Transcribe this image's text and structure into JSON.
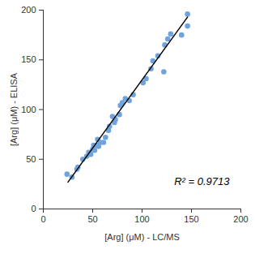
{
  "chart_data": {
    "type": "scatter",
    "x_label": "[Arg] (μM) - LC/MS",
    "y_label": "[Arg] (μM) - ELISA",
    "x": [
      24,
      29,
      34,
      35,
      40,
      44,
      46,
      48,
      50,
      51,
      52,
      54,
      55,
      56,
      58,
      61,
      63,
      66,
      67,
      70,
      72,
      73,
      77,
      78,
      80,
      83,
      87,
      91,
      101,
      104,
      109,
      111,
      116,
      122,
      123,
      126,
      129,
      140,
      146,
      146
    ],
    "values": [
      35,
      32,
      40,
      42,
      50,
      53,
      57,
      55,
      60,
      64,
      59,
      64,
      70,
      63,
      67,
      67,
      72,
      79,
      83,
      93,
      87,
      90,
      95,
      104,
      107,
      111,
      109,
      115,
      127,
      131,
      141,
      149,
      154,
      138,
      165,
      171,
      176,
      175,
      184,
      196
    ],
    "color": "#6fa3dc",
    "fit_line": {
      "x": [
        25,
        146
      ],
      "y": [
        27,
        193
      ],
      "color": "#000000"
    },
    "annotation": "R² = 0.9713",
    "xlim": [
      0,
      200
    ],
    "xticks": [
      0,
      50,
      100,
      150,
      200
    ],
    "ylim": [
      0,
      200
    ],
    "yticks": [
      0,
      50,
      100,
      150,
      200
    ],
    "grid": false
  }
}
